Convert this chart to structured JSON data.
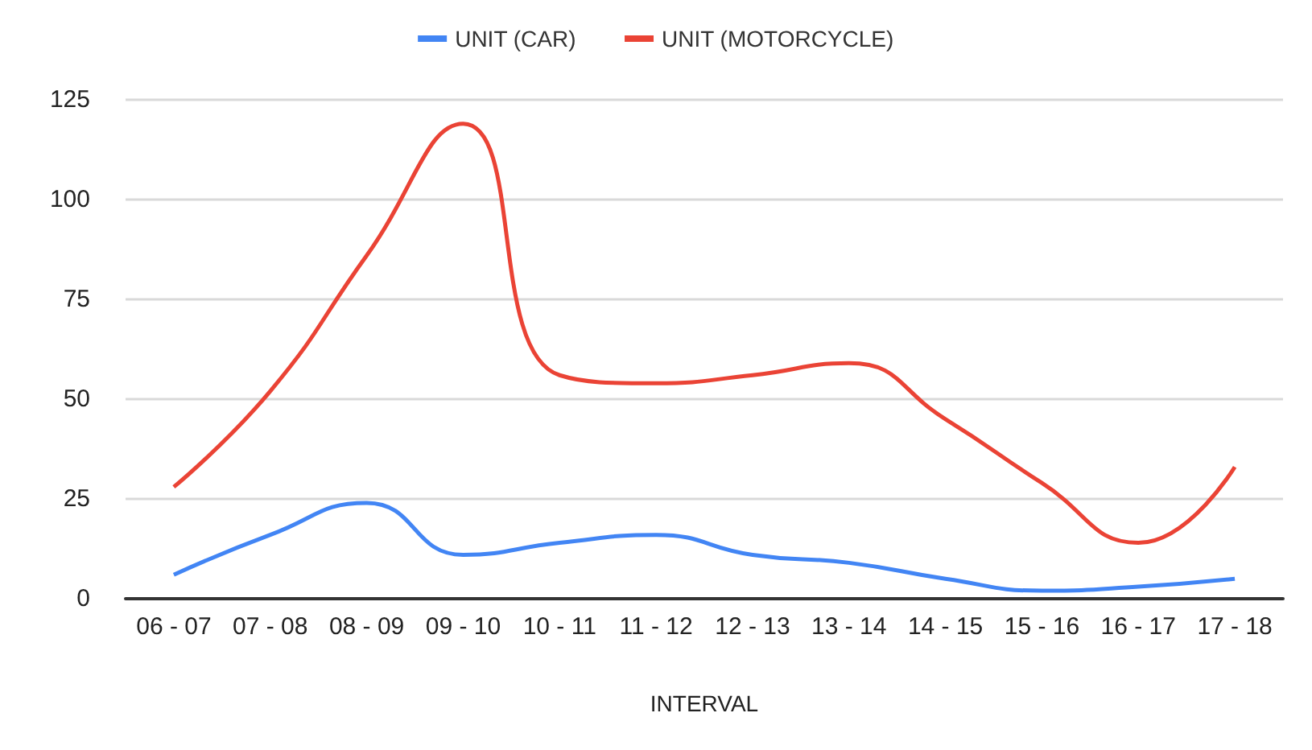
{
  "chart_data": {
    "type": "line",
    "xlabel": "INTERVAL",
    "categories": [
      "06 - 07",
      "07 - 08",
      "08 - 09",
      "09 - 10",
      "10 - 11",
      "11 - 12",
      "12 - 13",
      "13 - 14",
      "14 - 15",
      "15 - 16",
      "16 - 17",
      "17 - 18"
    ],
    "series": [
      {
        "name": "UNIT (CAR)",
        "color": "#4285f4",
        "values": [
          6,
          16,
          24,
          11,
          14,
          16,
          11,
          9,
          5,
          2,
          3,
          5
        ]
      },
      {
        "name": "UNIT (MOTORCYCLE)",
        "color": "#ea4335",
        "values": [
          28,
          52,
          86,
          119,
          56,
          54,
          56,
          59,
          45,
          29,
          14,
          33
        ]
      }
    ],
    "ylim": [
      0,
      125
    ],
    "yticks": [
      0,
      25,
      50,
      75,
      100,
      125
    ],
    "grid": "y",
    "legend": "top",
    "marker": "none"
  }
}
